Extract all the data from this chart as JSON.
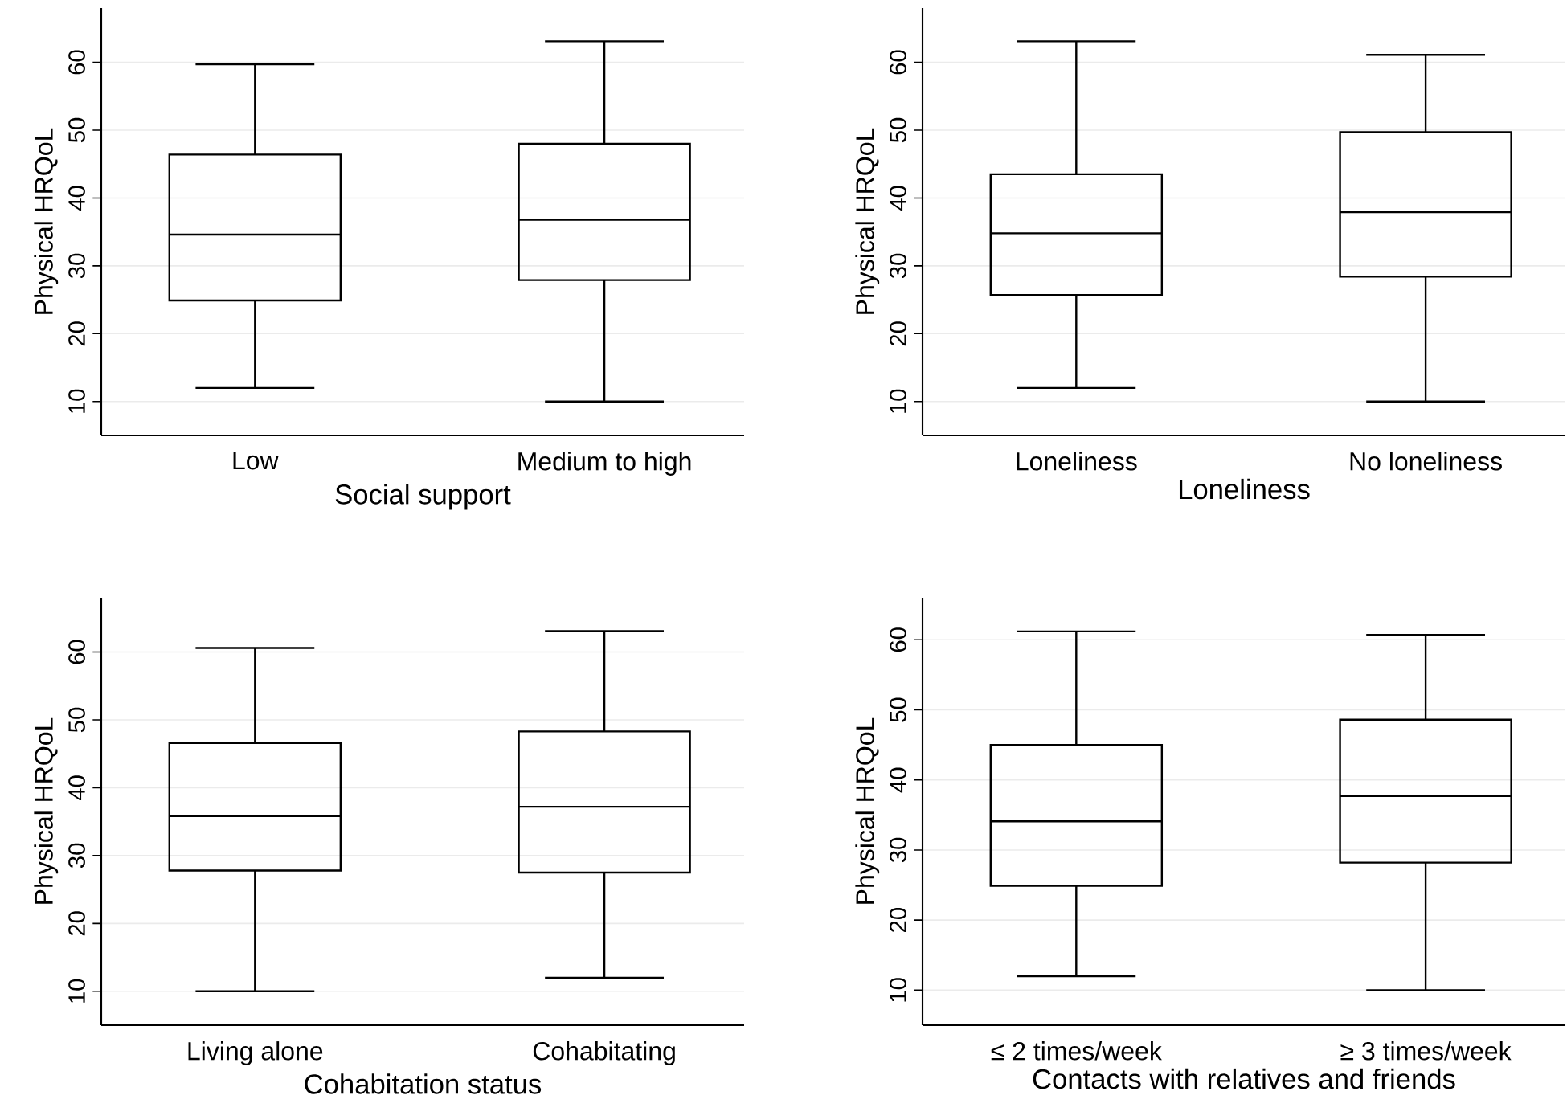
{
  "chart_data": [
    {
      "type": "box",
      "categories": [
        "Low",
        "Medium to high"
      ],
      "xlabel": "Social support",
      "ylabel": "Physical HRQoL",
      "ylim": [
        5,
        68
      ],
      "yticks": [
        10,
        20,
        30,
        40,
        50,
        60
      ],
      "grid": "y",
      "boxes": [
        {
          "low": 12.0,
          "q1": 24.9,
          "median": 34.6,
          "q3": 46.4,
          "high": 59.7
        },
        {
          "low": 10.0,
          "q1": 27.9,
          "median": 36.8,
          "q3": 48.0,
          "high": 63.1
        }
      ]
    },
    {
      "type": "box",
      "categories": [
        "Loneliness",
        "No loneliness"
      ],
      "xlabel": "Loneliness",
      "ylabel": "Physical HRQoL",
      "ylim": [
        5,
        68
      ],
      "yticks": [
        10,
        20,
        30,
        40,
        50,
        60
      ],
      "grid": "y",
      "boxes": [
        {
          "low": 12.0,
          "q1": 25.7,
          "median": 34.8,
          "q3": 43.5,
          "high": 63.1
        },
        {
          "low": 10.0,
          "q1": 28.4,
          "median": 37.9,
          "q3": 49.7,
          "high": 61.1
        }
      ]
    },
    {
      "type": "box",
      "categories": [
        "Living alone",
        "Cohabitating"
      ],
      "xlabel": "Cohabitation status",
      "ylabel": "Physical HRQoL",
      "ylim": [
        5,
        68
      ],
      "yticks": [
        10,
        20,
        30,
        40,
        50,
        60
      ],
      "grid": "y",
      "boxes": [
        {
          "low": 10.0,
          "q1": 27.8,
          "median": 35.8,
          "q3": 46.6,
          "high": 60.6
        },
        {
          "low": 12.0,
          "q1": 27.5,
          "median": 37.2,
          "q3": 48.3,
          "high": 63.1
        }
      ]
    },
    {
      "type": "box",
      "categories": [
        "≤ 2 times/week",
        "≥ 3 times/week"
      ],
      "xlabel": "Contacts with relatives and friends",
      "ylabel": "Physical HRQoL",
      "ylim": [
        5,
        66
      ],
      "yticks": [
        10,
        20,
        30,
        40,
        50,
        60
      ],
      "grid": "y",
      "boxes": [
        {
          "low": 12.0,
          "q1": 24.9,
          "median": 34.1,
          "q3": 45.0,
          "high": 61.2
        },
        {
          "low": 10.0,
          "q1": 28.2,
          "median": 37.7,
          "q3": 48.6,
          "high": 60.7
        }
      ]
    }
  ]
}
